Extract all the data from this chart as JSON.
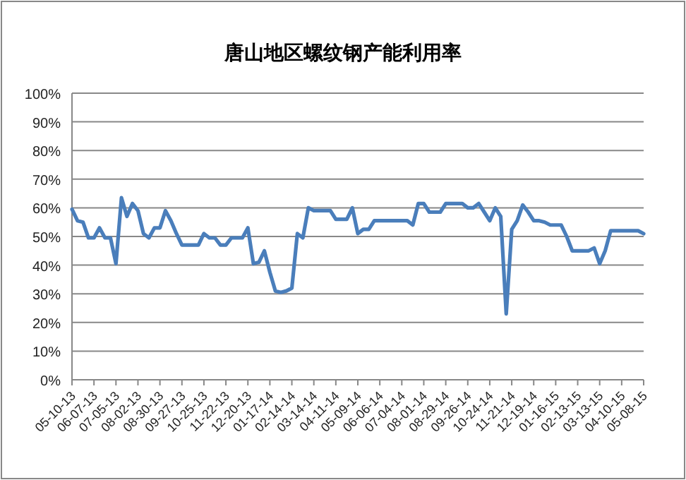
{
  "chart_data": {
    "type": "line",
    "title": "唐山地区螺纹钢产能利用率",
    "categories": [
      "05-10-13",
      null,
      null,
      null,
      "06-07-13",
      null,
      null,
      null,
      "07-05-13",
      null,
      null,
      null,
      "08-02-13",
      null,
      null,
      null,
      "08-30-13",
      null,
      null,
      null,
      "09-27-13",
      null,
      null,
      null,
      "10-25-13",
      null,
      null,
      null,
      "11-22-13",
      null,
      null,
      null,
      "12-20-13",
      null,
      null,
      null,
      "01-17-14",
      null,
      null,
      null,
      "02-14-14",
      null,
      null,
      null,
      "03-14-14",
      null,
      null,
      null,
      "04-11-14",
      null,
      null,
      null,
      "05-09-14",
      null,
      null,
      null,
      "06-06-14",
      null,
      null,
      null,
      "07-04-14",
      null,
      null,
      null,
      "08-01-14",
      null,
      null,
      null,
      "08-29-14",
      null,
      null,
      null,
      "09-26-14",
      null,
      null,
      null,
      "10-24-14",
      null,
      null,
      null,
      "11-21-14",
      null,
      null,
      null,
      "12-19-14",
      null,
      null,
      null,
      "01-16-15",
      null,
      null,
      null,
      "02-13-15",
      null,
      null,
      null,
      "03-13-15",
      null,
      null,
      null,
      "04-10-15",
      null,
      null,
      null,
      "05-08-15"
    ],
    "values": [
      59.5,
      55.5,
      55,
      49.5,
      49.5,
      53,
      49.5,
      49.5,
      40.5,
      63.5,
      57,
      61.5,
      59,
      51,
      49.5,
      53,
      53,
      59,
      55.5,
      51,
      47,
      47,
      47,
      47,
      51,
      49.5,
      49.5,
      47,
      47,
      49.5,
      49.5,
      49.5,
      53,
      40.5,
      41,
      45,
      37.5,
      31,
      30.5,
      31,
      32,
      51,
      49.5,
      60,
      59,
      59,
      59,
      59,
      56,
      56,
      56,
      60,
      51,
      52.5,
      52.5,
      55.5,
      55.5,
      55.5,
      55.5,
      55.5,
      55.5,
      55.5,
      54,
      61.5,
      61.5,
      58.5,
      58.5,
      58.5,
      61.5,
      61.5,
      61.5,
      61.5,
      60,
      60,
      61.5,
      58.5,
      55.5,
      60,
      57,
      23,
      52.5,
      55.5,
      61,
      58.5,
      55.5,
      55.5,
      55,
      54,
      54,
      54,
      50,
      45,
      45,
      45,
      45,
      46,
      40.5,
      45,
      52,
      52,
      52,
      52,
      52,
      52,
      51
    ],
    "color": "#4a7ebb",
    "ylim": [
      0,
      100
    ],
    "yticks": [
      {
        "value": 0,
        "label": "0%"
      },
      {
        "value": 10,
        "label": "10%"
      },
      {
        "value": 20,
        "label": "20%"
      },
      {
        "value": 30,
        "label": "30%"
      },
      {
        "value": 40,
        "label": "40%"
      },
      {
        "value": 50,
        "label": "50%"
      },
      {
        "value": 60,
        "label": "60%"
      },
      {
        "value": 70,
        "label": "70%"
      },
      {
        "value": 80,
        "label": "80%"
      },
      {
        "value": 90,
        "label": "90%"
      },
      {
        "value": 100,
        "label": "100%"
      }
    ],
    "grid": "y"
  }
}
